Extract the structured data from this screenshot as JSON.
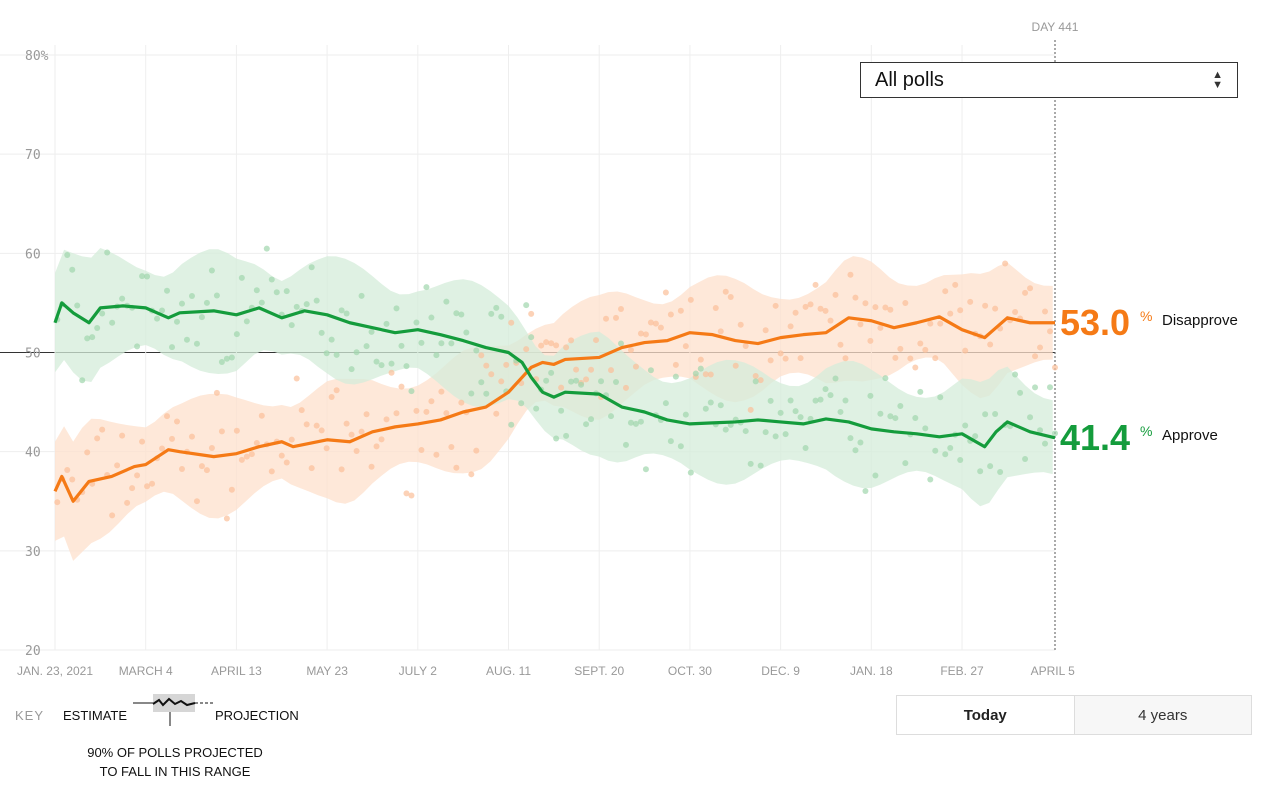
{
  "dropdown": {
    "selected": "All polls"
  },
  "day_label": "DAY 441",
  "toggle": {
    "today": "Today",
    "years": "4 years"
  },
  "key": {
    "title": "KEY",
    "estimate": "ESTIMATE",
    "projection": "PROJECTION",
    "note_line1": "90% OF POLLS PROJECTED",
    "note_line2": "TO FALL IN THIS RANGE"
  },
  "colors": {
    "approve": "#149c3c",
    "disapprove": "#f57a16",
    "approve_band": "#d4ecd9",
    "disapprove_band": "#fde0cc"
  },
  "chart_data": {
    "type": "line",
    "y_ticks": [
      "80%",
      "70",
      "60",
      "50",
      "40",
      "30",
      "20"
    ],
    "x_ticks": [
      "JAN. 23, 2021",
      "MARCH 4",
      "APRIL 13",
      "MAY 23",
      "JULY 2",
      "AUG. 11",
      "SEPT. 20",
      "OCT. 30",
      "DEC. 9",
      "JAN. 18",
      "FEB. 27",
      "APRIL 5"
    ],
    "ylim": [
      20,
      80
    ],
    "xlim": [
      0,
      441
    ],
    "series": [
      {
        "name": "Disapprove",
        "final_value": "53.0",
        "pct": "%",
        "x": [
          0,
          3,
          8,
          15,
          25,
          35,
          40,
          50,
          55,
          70,
          80,
          90,
          100,
          105,
          120,
          130,
          140,
          150,
          160,
          170,
          180,
          190,
          200,
          206,
          210,
          215,
          220,
          225,
          240,
          250,
          260,
          270,
          280,
          290,
          300,
          310,
          320,
          330,
          340,
          350,
          360,
          370,
          380,
          390,
          400,
          410,
          415,
          420,
          430,
          441
        ],
        "values": [
          36.0,
          37.5,
          35.0,
          37.0,
          37.5,
          38.5,
          38.7,
          40.2,
          40.0,
          39.5,
          39.8,
          40.5,
          41.0,
          40.5,
          41.2,
          41.0,
          42.0,
          42.5,
          42.8,
          43.2,
          44.0,
          44.5,
          46.0,
          47.5,
          48.5,
          49.0,
          48.8,
          49.3,
          49.5,
          50.5,
          51.0,
          51.2,
          52.0,
          51.8,
          51.2,
          50.9,
          51.5,
          51.8,
          52.0,
          53.5,
          53.2,
          52.5,
          53.0,
          53.6,
          52.3,
          51.5,
          52.5,
          53.5,
          53.0,
          53.0
        ]
      },
      {
        "name": "Approve",
        "final_value": "41.4",
        "pct": "%",
        "x": [
          0,
          3,
          8,
          15,
          20,
          30,
          40,
          50,
          55,
          70,
          80,
          90,
          100,
          110,
          120,
          130,
          140,
          150,
          160,
          170,
          180,
          190,
          200,
          206,
          210,
          215,
          220,
          225,
          240,
          250,
          260,
          270,
          280,
          290,
          300,
          310,
          320,
          330,
          340,
          350,
          360,
          370,
          380,
          390,
          400,
          410,
          415,
          420,
          430,
          441
        ],
        "values": [
          53.0,
          55.0,
          54.0,
          53.0,
          54.5,
          54.7,
          54.5,
          53.5,
          54.0,
          54.2,
          53.8,
          54.5,
          53.5,
          54.2,
          53.8,
          53.0,
          52.5,
          52.0,
          52.3,
          51.8,
          51.2,
          50.5,
          50.0,
          49.0,
          47.5,
          46.0,
          45.5,
          46.0,
          45.8,
          44.5,
          44.0,
          43.2,
          42.8,
          42.9,
          43.0,
          43.2,
          43.0,
          42.8,
          43.3,
          43.0,
          42.3,
          42.0,
          41.8,
          41.5,
          41.8,
          40.5,
          42.0,
          43.0,
          42.0,
          41.4
        ]
      }
    ]
  }
}
